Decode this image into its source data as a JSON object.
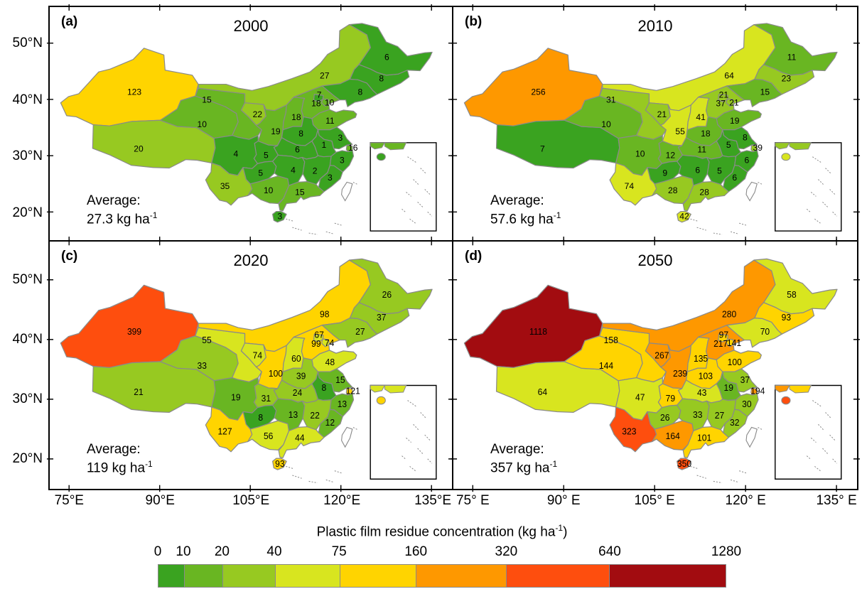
{
  "figure": {
    "background": "#ffffff"
  },
  "axes": {
    "lat_tick_labels": [
      "50°N",
      "40°N",
      "30°N",
      "20°N"
    ],
    "lat_tick_values": [
      50,
      40,
      30,
      20
    ],
    "lon_tick_values": [
      75,
      90,
      105,
      120,
      135
    ],
    "lon_tick_labels_left_panel": [
      "75°E",
      "90°E",
      "105°E",
      "120°E",
      "135°E"
    ],
    "lon_tick_labels_right_panel": [
      "75° E",
      "90° E",
      "105° E",
      "120° E",
      "135° E"
    ]
  },
  "legend": {
    "title_text": "Plastic film residue concentration (kg ha",
    "title_sup": "-1",
    "title_close": ")",
    "tick_labels": [
      "0",
      "10",
      "20",
      "40",
      "75",
      "160",
      "320",
      "640",
      "1280"
    ],
    "segment_colors": [
      "#3aa320",
      "#69b622",
      "#97c921",
      "#d8e51f",
      "#ffd400",
      "#fe9800",
      "#fe4e0e",
      "#a20c10"
    ]
  },
  "chart_data": {
    "type": "heatmap",
    "subtype": "choropleth_map_small_multiples",
    "region": "China, province level",
    "variable": "Plastic film residue concentration (kg ha-1)",
    "years": [
      "2000",
      "2010",
      "2020",
      "2050"
    ],
    "panel_labels": [
      "(a)",
      "(b)",
      "(c)",
      "(d)"
    ],
    "average_prefix": "Average:",
    "average_values": [
      "27.3",
      "57.6",
      "119",
      "357"
    ],
    "average_unit": " kg ha",
    "average_unit_sup": "-1",
    "class_breaks": [
      0,
      10,
      20,
      40,
      75,
      160,
      320,
      640,
      1280
    ],
    "class_colors": [
      "#3aa320",
      "#69b622",
      "#97c921",
      "#d8e51f",
      "#ffd400",
      "#fe9800",
      "#fe4e0e",
      "#a20c10"
    ],
    "provinces": [
      {
        "id": "xinjiang",
        "name": "Xinjiang",
        "values": [
          123,
          256,
          399,
          1118
        ]
      },
      {
        "id": "tibet",
        "name": "Tibet",
        "values": [
          20,
          7,
          21,
          64
        ]
      },
      {
        "id": "qinghai",
        "name": "Qinghai",
        "values": [
          10,
          10,
          33,
          144
        ]
      },
      {
        "id": "gansu",
        "name": "Gansu",
        "values": [
          15,
          31,
          55,
          158
        ]
      },
      {
        "id": "innermongolia",
        "name": "Inner Mongolia",
        "values": [
          27,
          64,
          98,
          280
        ]
      },
      {
        "id": "ningxia",
        "name": "Ningxia",
        "values": [
          22,
          21,
          74,
          267
        ]
      },
      {
        "id": "shaanxi",
        "name": "Shaanxi",
        "values": [
          19,
          55,
          100,
          239
        ]
      },
      {
        "id": "shanxi",
        "name": "Shanxi",
        "values": [
          18,
          41,
          60,
          135
        ]
      },
      {
        "id": "hebei",
        "name": "Hebei",
        "values": [
          18,
          37,
          99,
          217
        ]
      },
      {
        "id": "beijing",
        "name": "Beijing",
        "values": [
          7,
          21,
          67,
          97
        ]
      },
      {
        "id": "tianjin",
        "name": "Tianjin",
        "values": [
          10,
          21,
          74,
          141
        ]
      },
      {
        "id": "liaoning",
        "name": "Liaoning",
        "values": [
          8,
          15,
          27,
          70
        ]
      },
      {
        "id": "jilin",
        "name": "Jilin",
        "values": [
          8,
          23,
          37,
          93
        ]
      },
      {
        "id": "heilongjiang",
        "name": "Heilongjiang",
        "values": [
          6,
          11,
          26,
          58
        ]
      },
      {
        "id": "shandong",
        "name": "Shandong",
        "values": [
          11,
          19,
          48,
          100
        ]
      },
      {
        "id": "henan",
        "name": "Henan",
        "values": [
          8,
          18,
          39,
          103
        ]
      },
      {
        "id": "jiangsu",
        "name": "Jiangsu",
        "values": [
          3,
          8,
          15,
          37
        ]
      },
      {
        "id": "shanghai",
        "name": "Shanghai",
        "values": [
          16,
          39,
          121,
          194
        ]
      },
      {
        "id": "anhui",
        "name": "Anhui",
        "values": [
          1,
          5,
          8,
          19
        ]
      },
      {
        "id": "hubei",
        "name": "Hubei",
        "values": [
          6,
          11,
          24,
          43
        ]
      },
      {
        "id": "chongqing",
        "name": "Chongqing",
        "values": [
          5,
          12,
          31,
          79
        ]
      },
      {
        "id": "sichuan",
        "name": "Sichuan",
        "values": [
          4,
          10,
          19,
          47
        ]
      },
      {
        "id": "guizhou",
        "name": "Guizhou",
        "values": [
          5,
          9,
          8,
          26
        ]
      },
      {
        "id": "yunnan",
        "name": "Yunnan",
        "values": [
          35,
          74,
          127,
          323
        ]
      },
      {
        "id": "guangxi",
        "name": "Guangxi",
        "values": [
          10,
          28,
          56,
          164
        ]
      },
      {
        "id": "hunan",
        "name": "Hunan",
        "values": [
          4,
          6,
          13,
          33
        ]
      },
      {
        "id": "jiangxi",
        "name": "Jiangxi",
        "values": [
          2,
          5,
          22,
          27
        ]
      },
      {
        "id": "zhejiang",
        "name": "Zhejiang",
        "values": [
          3,
          6,
          13,
          30
        ]
      },
      {
        "id": "fujian",
        "name": "Fujian",
        "values": [
          3,
          6,
          12,
          32
        ]
      },
      {
        "id": "guangdong",
        "name": "Guangdong",
        "values": [
          15,
          28,
          44,
          101
        ]
      },
      {
        "id": "hainan",
        "name": "Hainan",
        "values": [
          3,
          42,
          93,
          350
        ]
      }
    ]
  }
}
